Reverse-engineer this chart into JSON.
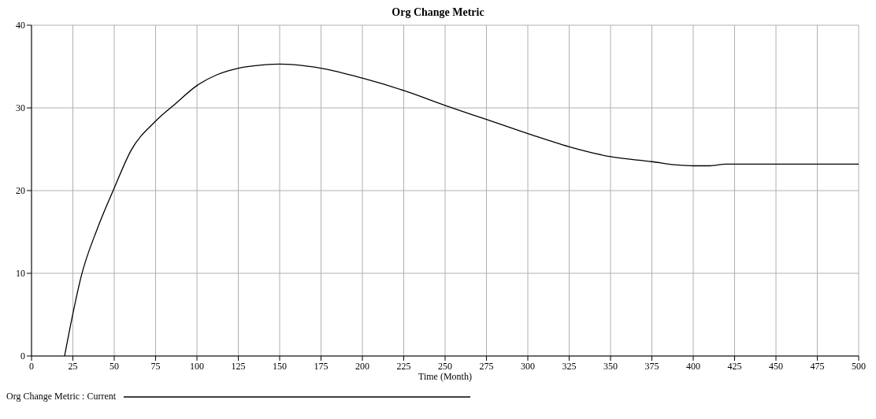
{
  "chart_data": {
    "type": "line",
    "title": "Org Change Metric",
    "xlabel": "Time (Month)",
    "series": [
      {
        "name": "Org Change Metric : Current",
        "color": "#000000",
        "x": [
          20,
          25,
          30,
          40,
          50,
          60,
          75,
          87,
          100,
          112,
          125,
          140,
          150,
          160,
          175,
          200,
          225,
          250,
          275,
          300,
          325,
          350,
          375,
          390,
          400,
          410,
          420,
          450,
          500
        ],
        "values": [
          0,
          5.1,
          9.6,
          15.5,
          20.3,
          24.8,
          28.4,
          30.5,
          32.7,
          34,
          34.8,
          35.2,
          35.3,
          35.2,
          34.8,
          33.6,
          32.1,
          30.3,
          28.6,
          26.9,
          25.3,
          24.1,
          23.5,
          23.1,
          23.0,
          23.0,
          23.2,
          23.2,
          23.2
        ]
      }
    ],
    "xlim": [
      0,
      500
    ],
    "xticks": [
      0,
      25,
      50,
      75,
      100,
      125,
      150,
      175,
      200,
      225,
      250,
      275,
      300,
      325,
      350,
      375,
      400,
      425,
      450,
      475,
      500
    ],
    "ylim": [
      0,
      40
    ],
    "yticks": [
      0,
      10,
      20,
      30,
      40
    ],
    "grid": true,
    "legend": "bottom left",
    "marker": "none",
    "line_style": "solid"
  }
}
